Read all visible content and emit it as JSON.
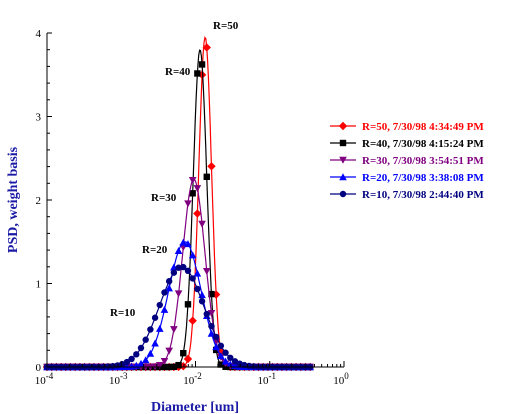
{
  "chart_data": {
    "type": "line",
    "title": "",
    "xlabel": "Diameter [um]",
    "ylabel": "PSD, weight basis",
    "x_scale": "log",
    "xlim": [
      0.0001,
      1
    ],
    "ylim": [
      0,
      4
    ],
    "x_ticks": [
      {
        "value": 0.0001,
        "base": "10",
        "exp": "-4"
      },
      {
        "value": 0.001,
        "base": "10",
        "exp": "-3"
      },
      {
        "value": 0.01,
        "base": "10",
        "exp": "-2"
      },
      {
        "value": 0.1,
        "base": "10",
        "exp": "-1"
      },
      {
        "value": 1,
        "base": "10",
        "exp": "0"
      }
    ],
    "y_ticks": [
      0,
      1,
      2,
      3,
      4
    ],
    "grid": false,
    "legend_position": "right",
    "series": [
      {
        "name": "R=50, 7/30/98 4:34:49 PM",
        "color": "#ff0000",
        "marker": "diamond",
        "peak": 3.95,
        "center": 0.0135,
        "sigma": 0.085,
        "label": "R=50"
      },
      {
        "name": "R=40, 7/30/98 4:15:24 PM",
        "color": "#000000",
        "marker": "square",
        "peak": 3.8,
        "center": 0.0115,
        "sigma": 0.09,
        "label": "R=40"
      },
      {
        "name": "R=30, 7/30/98 3:54:51 PM",
        "color": "#800080",
        "marker": "triangle-down",
        "peak": 2.25,
        "center": 0.0095,
        "sigma": 0.15,
        "label": "R=30"
      },
      {
        "name": "R=20, 7/30/98 3:38:08 PM",
        "color": "#0000ff",
        "marker": "triangle-up",
        "peak": 1.5,
        "center": 0.0072,
        "sigma": 0.22,
        "label": "R=20"
      },
      {
        "name": "R=10, 7/30/98 2:44:40 PM",
        "color": "#000080",
        "marker": "circle",
        "peak": 1.2,
        "center": 0.0065,
        "sigma": 0.3,
        "label": "R=10"
      }
    ],
    "annotations": [
      "R=50",
      "R=40",
      "R=30",
      "R=20",
      "R=10"
    ]
  }
}
